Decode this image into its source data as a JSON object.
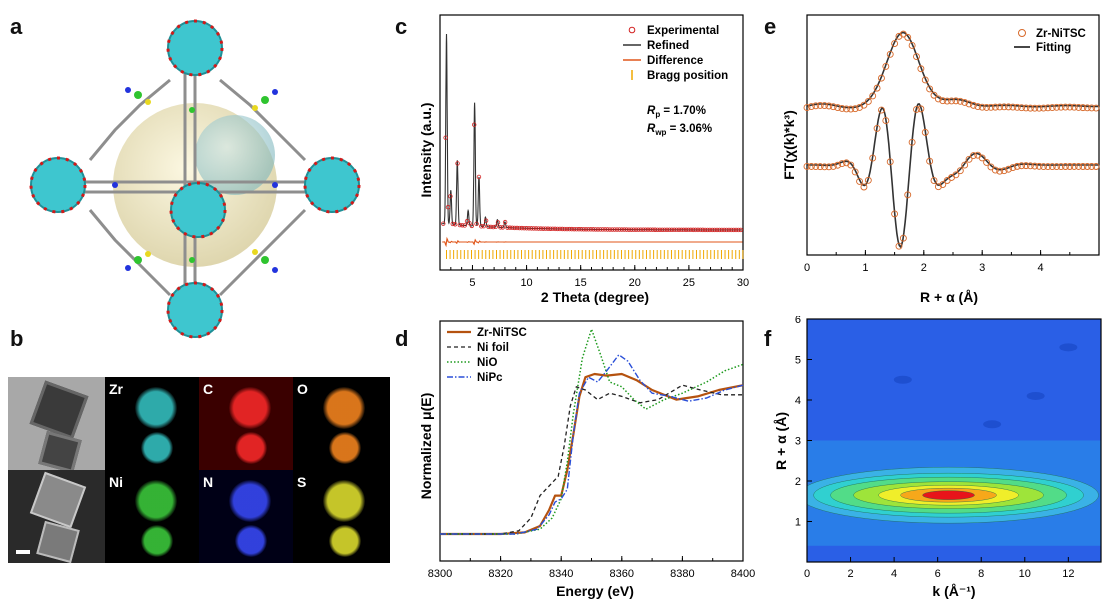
{
  "panels": {
    "a": {
      "letter": "a"
    },
    "b": {
      "letter": "b",
      "eds_elements": [
        {
          "symbol": "Zr",
          "color": "#36c8c8",
          "bg": "#000000"
        },
        {
          "symbol": "C",
          "color": "#ff2a2a",
          "bg": "#3a0000"
        },
        {
          "symbol": "O",
          "color": "#ff8a20",
          "bg": "#000000"
        },
        {
          "symbol": "Ni",
          "color": "#3ed23e",
          "bg": "#000000"
        },
        {
          "symbol": "N",
          "color": "#3a4cff",
          "bg": "#000016"
        },
        {
          "symbol": "S",
          "color": "#e8e830",
          "bg": "#000000"
        }
      ]
    },
    "c": {
      "letter": "c",
      "rp_label": "R",
      "rp_sub": "p",
      "rp_value": " = 1.70%",
      "rwp_label": "R",
      "rwp_sub": "wp",
      "rwp_value": " = 3.06%"
    },
    "d": {
      "letter": "d"
    },
    "e": {
      "letter": "e"
    },
    "f": {
      "letter": "f"
    }
  },
  "chart_data": [
    {
      "id": "c",
      "type": "line",
      "xlabel": "2 Theta (degree)",
      "ylabel": "Intensity (a.u.)",
      "xlim": [
        2,
        30
      ],
      "xticks": [
        5,
        10,
        15,
        20,
        25,
        30
      ],
      "legend_position": "top-right",
      "series": [
        {
          "name": "Experimental",
          "color": "#d22020",
          "style": "circle"
        },
        {
          "name": "Refined",
          "color": "#333333",
          "style": "line"
        },
        {
          "name": "Difference",
          "color": "#e0561a",
          "style": "line"
        },
        {
          "name": "Bragg position",
          "color": "#f0a800",
          "style": "tick"
        }
      ],
      "peaks": [
        {
          "x": 2.6,
          "height": 1.0
        },
        {
          "x": 3.0,
          "height": 0.18
        },
        {
          "x": 3.6,
          "height": 0.34
        },
        {
          "x": 4.6,
          "height": 0.08
        },
        {
          "x": 5.2,
          "height": 0.65
        },
        {
          "x": 5.6,
          "height": 0.26
        },
        {
          "x": 6.2,
          "height": 0.05
        },
        {
          "x": 7.3,
          "height": 0.04
        },
        {
          "x": 8.0,
          "height": 0.03
        }
      ]
    },
    {
      "id": "d",
      "type": "line",
      "xlabel": "Energy (eV)",
      "ylabel": "Normalized μ(E)",
      "xlim": [
        8300,
        8400
      ],
      "xticks": [
        8300,
        8320,
        8340,
        8360,
        8380,
        8400
      ],
      "legend_position": "top-left",
      "series": [
        {
          "name": "Zr-NiTSC",
          "color": "#b5520f",
          "dash": "",
          "width": 2.2,
          "points": [
            [
              8300,
              0
            ],
            [
              8320,
              0.0
            ],
            [
              8328,
              0.01
            ],
            [
              8333,
              0.05
            ],
            [
              8336,
              0.15
            ],
            [
              8338,
              0.24
            ],
            [
              8340,
              0.24
            ],
            [
              8342,
              0.4
            ],
            [
              8344,
              0.62
            ],
            [
              8346,
              0.86
            ],
            [
              8348,
              0.98
            ],
            [
              8351,
              1.0
            ],
            [
              8355,
              0.99
            ],
            [
              8360,
              1.0
            ],
            [
              8365,
              0.96
            ],
            [
              8370,
              0.9
            ],
            [
              8378,
              0.84
            ],
            [
              8385,
              0.86
            ],
            [
              8392,
              0.9
            ],
            [
              8400,
              0.93
            ]
          ]
        },
        {
          "name": "Ni foil",
          "color": "#222222",
          "dash": "4,3",
          "width": 1.3,
          "points": [
            [
              8300,
              0
            ],
            [
              8320,
              0.0
            ],
            [
              8326,
              0.02
            ],
            [
              8330,
              0.1
            ],
            [
              8333,
              0.24
            ],
            [
              8336,
              0.3
            ],
            [
              8339,
              0.36
            ],
            [
              8341,
              0.55
            ],
            [
              8343,
              0.8
            ],
            [
              8345,
              0.92
            ],
            [
              8348,
              0.9
            ],
            [
              8352,
              0.84
            ],
            [
              8356,
              0.88
            ],
            [
              8360,
              0.86
            ],
            [
              8366,
              0.82
            ],
            [
              8372,
              0.84
            ],
            [
              8380,
              0.93
            ],
            [
              8386,
              0.9
            ],
            [
              8393,
              0.87
            ],
            [
              8400,
              0.87
            ]
          ]
        },
        {
          "name": "NiO",
          "color": "#1e9a1e",
          "dash": "1.5,2",
          "width": 1.5,
          "points": [
            [
              8300,
              0
            ],
            [
              8325,
              0.0
            ],
            [
              8333,
              0.03
            ],
            [
              8337,
              0.1
            ],
            [
              8340,
              0.22
            ],
            [
              8342,
              0.45
            ],
            [
              8344,
              0.75
            ],
            [
              8347,
              1.1
            ],
            [
              8350,
              1.28
            ],
            [
              8353,
              1.12
            ],
            [
              8356,
              0.95
            ],
            [
              8360,
              0.92
            ],
            [
              8364,
              0.84
            ],
            [
              8368,
              0.78
            ],
            [
              8374,
              0.84
            ],
            [
              8380,
              0.88
            ],
            [
              8388,
              0.95
            ],
            [
              8394,
              1.02
            ],
            [
              8400,
              1.06
            ]
          ]
        },
        {
          "name": "NiPc",
          "color": "#2a4fd8",
          "dash": "6,2,1.5,2",
          "width": 1.4,
          "points": [
            [
              8300,
              0
            ],
            [
              8325,
              0.0
            ],
            [
              8332,
              0.03
            ],
            [
              8336,
              0.12
            ],
            [
              8338,
              0.2
            ],
            [
              8340,
              0.22
            ],
            [
              8342,
              0.28
            ],
            [
              8344,
              0.62
            ],
            [
              8346,
              0.88
            ],
            [
              8349,
              0.98
            ],
            [
              8352,
              0.95
            ],
            [
              8355,
              1.02
            ],
            [
              8359,
              1.12
            ],
            [
              8362,
              1.08
            ],
            [
              8366,
              0.96
            ],
            [
              8370,
              0.88
            ],
            [
              8376,
              0.86
            ],
            [
              8382,
              0.83
            ],
            [
              8388,
              0.85
            ],
            [
              8394,
              0.9
            ],
            [
              8400,
              0.93
            ]
          ]
        }
      ]
    },
    {
      "id": "e",
      "type": "line",
      "xlabel": "R + α (Å)",
      "ylabel": "FT(χ(k)*k³)",
      "xlim": [
        0,
        5
      ],
      "xticks": [
        0,
        1,
        2,
        3,
        4
      ],
      "legend_position": "top-right",
      "series": [
        {
          "name": "Zr-NiTSC",
          "color": "#d7692a",
          "style": "circle"
        },
        {
          "name": "Fitting",
          "color": "#333333",
          "style": "line"
        }
      ]
    },
    {
      "id": "f",
      "type": "heatmap",
      "xlabel": "k (Å⁻¹)",
      "ylabel": "R + α (Å)",
      "xlim": [
        0,
        13.5
      ],
      "ylim": [
        0,
        6
      ],
      "xticks": [
        0,
        2,
        4,
        6,
        8,
        10,
        12
      ],
      "yticks": [
        1,
        2,
        3,
        4,
        5,
        6
      ],
      "max_at": {
        "k": 6.5,
        "R": 1.65
      }
    }
  ]
}
